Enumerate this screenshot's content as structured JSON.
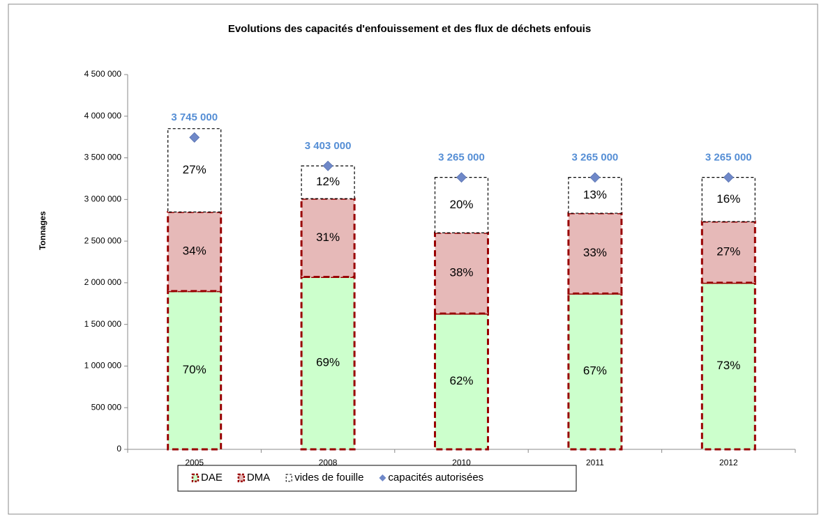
{
  "chart_data": {
    "type": "bar",
    "stacked": true,
    "title": "Evolutions des capacités d'enfouissement et des flux de déchets enfouis",
    "ylabel": "Tonnages",
    "categories": [
      "2005",
      "2008",
      "2010",
      "2011",
      "2012"
    ],
    "ylim": [
      0,
      4500000
    ],
    "yticks": [
      0,
      {
        "value": 500000,
        "label": "500 000"
      },
      {
        "value": 1000000,
        "label": "1 000 000"
      },
      {
        "value": 1500000,
        "label": "1 500 000"
      },
      {
        "value": 2000000,
        "label": "2 000 000"
      },
      {
        "value": 2500000,
        "label": "2 500 000"
      },
      {
        "value": 3000000,
        "label": "3 000 000"
      },
      {
        "value": 3500000,
        "label": "3 500 000"
      },
      {
        "value": 4000000,
        "label": "4 000 000"
      },
      {
        "value": 4500000,
        "label": "4 500 000"
      }
    ],
    "grid": false,
    "legend": "bottom",
    "series": [
      {
        "name": "DAE",
        "color": "#ccffcc",
        "stroke": "#990000",
        "values": [
          1900000,
          2070000,
          1630000,
          1870000,
          2000000
        ],
        "percent_labels": [
          "70%",
          "69%",
          "62%",
          "67%",
          "73%"
        ]
      },
      {
        "name": "DMA",
        "color": "#e6b9b8",
        "stroke": "#990000",
        "values": [
          950000,
          940000,
          970000,
          965000,
          735000
        ],
        "percent_labels": [
          "34%",
          "31%",
          "38%",
          "33%",
          "27%"
        ]
      },
      {
        "name": "vides de fouille",
        "color": "#ffffff",
        "stroke": "#000000",
        "values": [
          1000000,
          393000,
          665000,
          430000,
          530000
        ],
        "percent_labels": [
          "27%",
          "12%",
          "20%",
          "13%",
          "16%"
        ]
      },
      {
        "name": "capacités autorisées",
        "type": "scatter",
        "color": "#6f88c8",
        "label_color": "#558ed5",
        "values": [
          3745000,
          3403000,
          3265000,
          3265000,
          3265000
        ],
        "value_labels": [
          "3 745 000",
          "3 403 000",
          "3 265 000",
          "3 265 000",
          "3 265 000"
        ]
      }
    ]
  }
}
